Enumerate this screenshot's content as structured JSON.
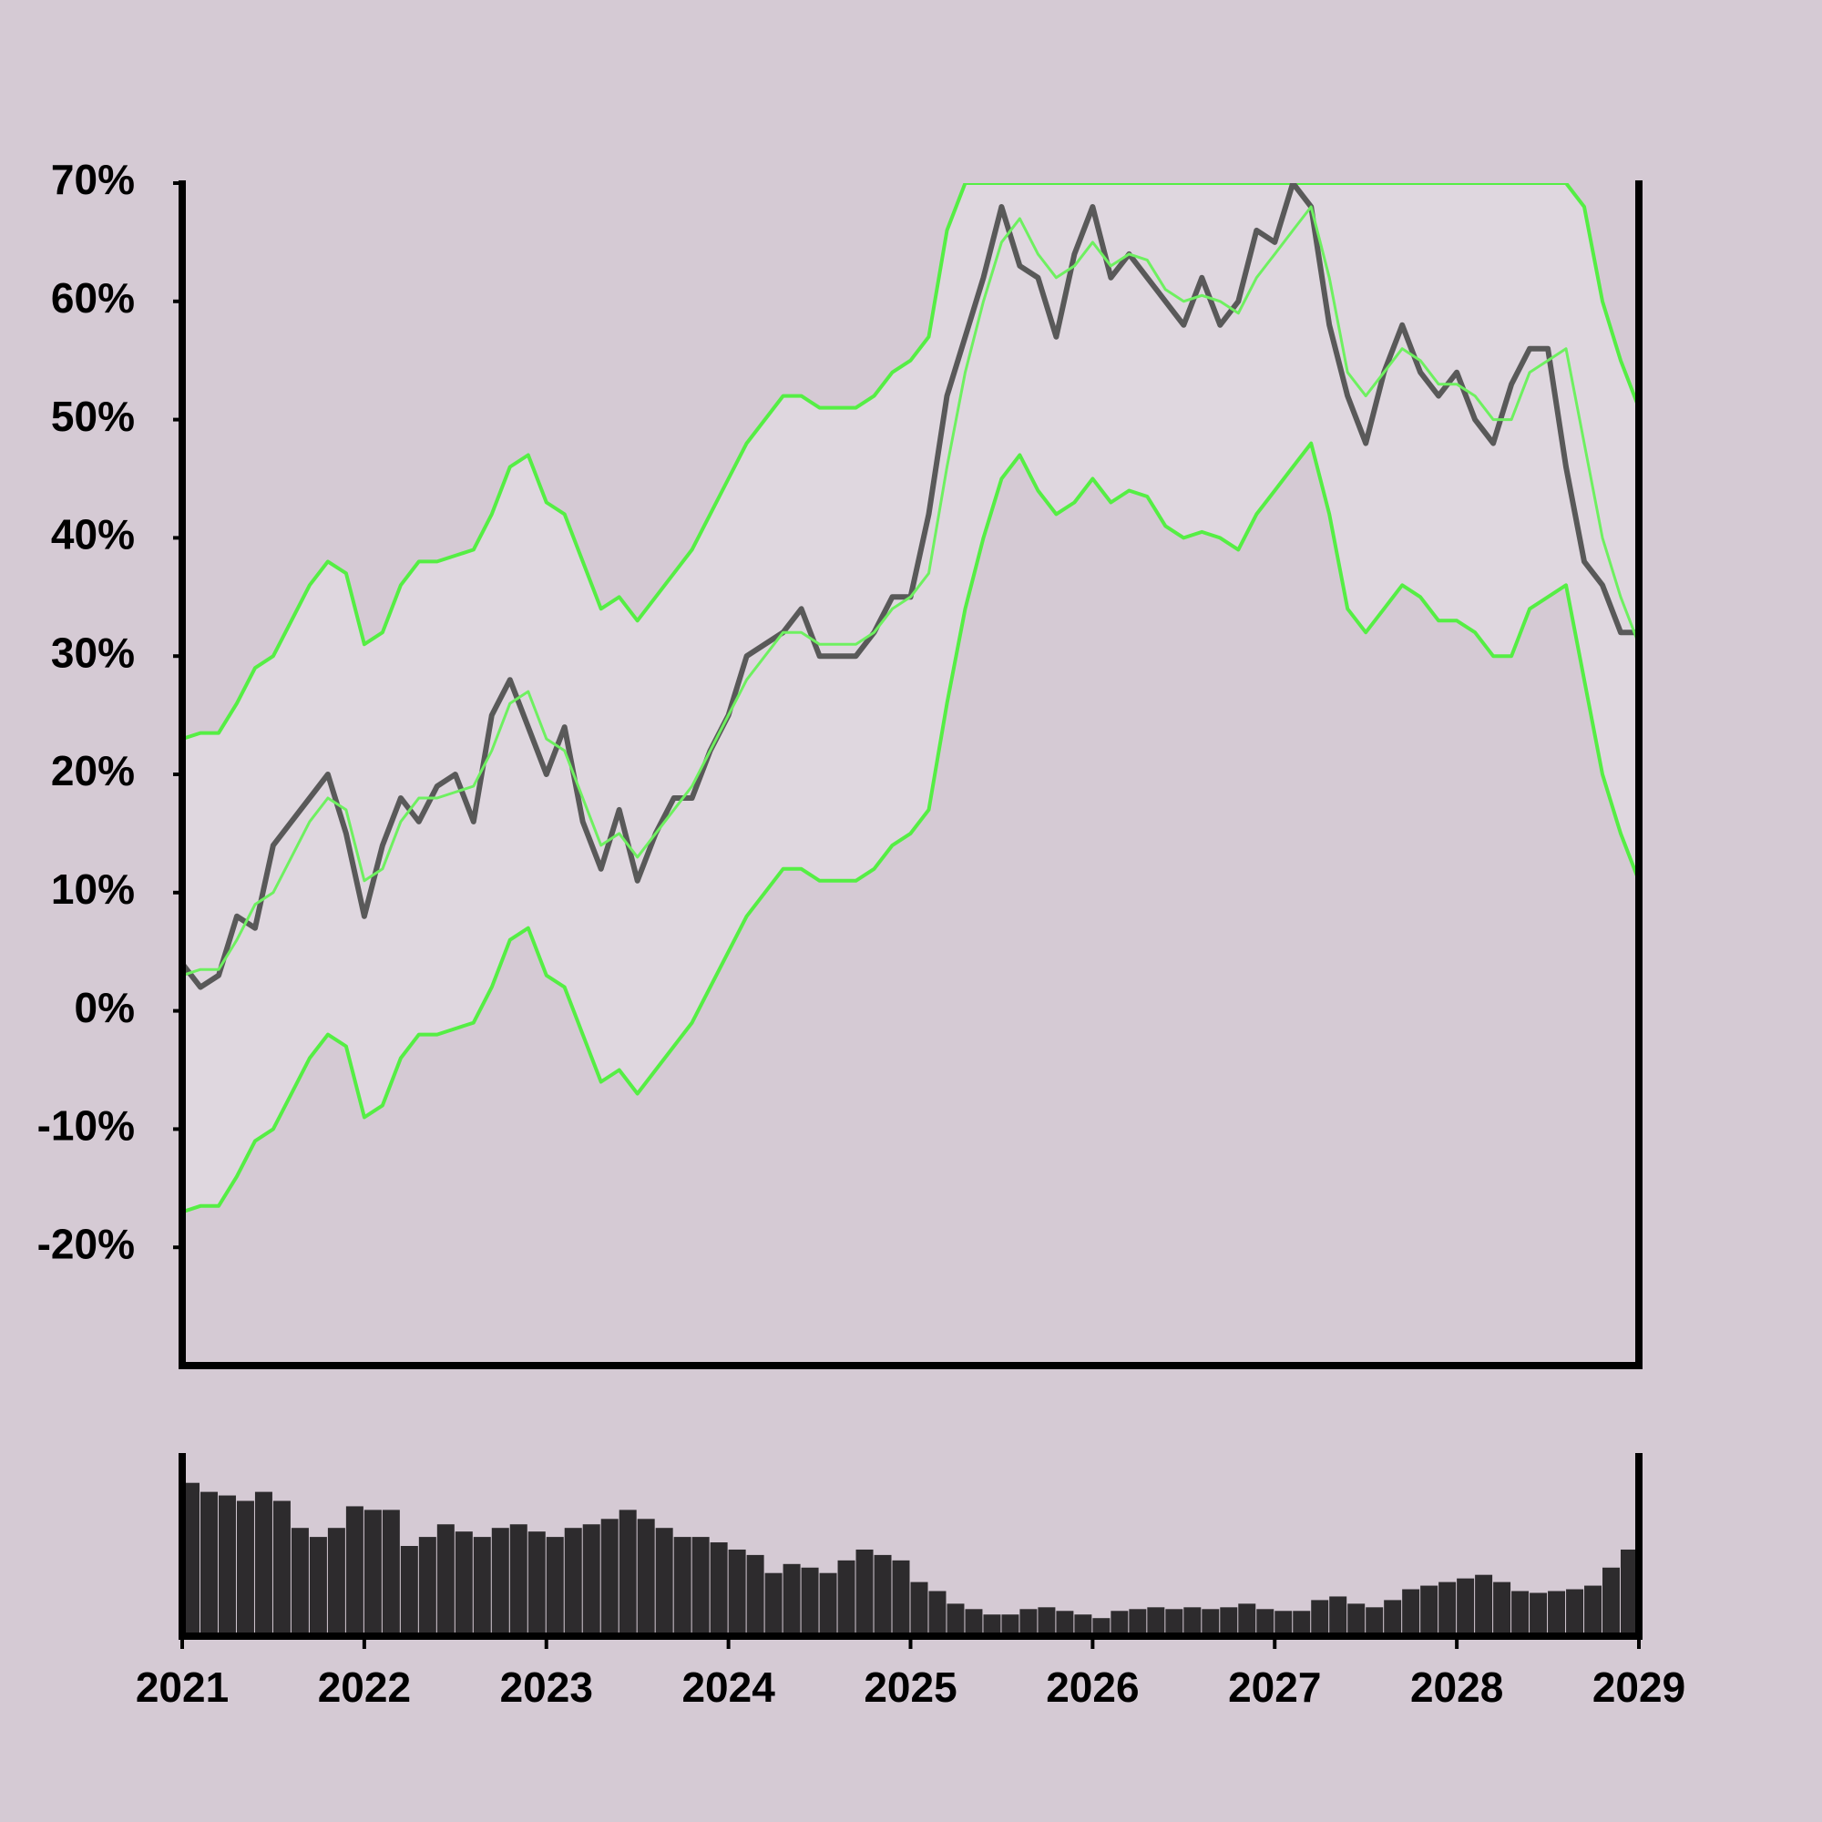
{
  "chart_data": [
    {
      "type": "line",
      "x": [
        2021.0,
        2021.1,
        2021.2,
        2021.3,
        2021.4,
        2021.5,
        2021.6,
        2021.7,
        2021.8,
        2021.9,
        2022.0,
        2022.1,
        2022.2,
        2022.3,
        2022.4,
        2022.5,
        2022.6,
        2022.7,
        2022.8,
        2022.9,
        2023.0,
        2023.1,
        2023.2,
        2023.3,
        2023.4,
        2023.5,
        2023.6,
        2023.7,
        2023.8,
        2023.9,
        2024.0,
        2024.1,
        2024.2,
        2024.3,
        2024.4,
        2024.5,
        2024.6,
        2024.7,
        2024.8,
        2024.9,
        2025.0,
        2025.1,
        2025.2,
        2025.3,
        2025.4,
        2025.5,
        2025.6,
        2025.7,
        2025.8,
        2025.9,
        2026.0,
        2026.1,
        2026.2,
        2026.3,
        2026.4,
        2026.5,
        2026.6,
        2026.7,
        2026.8,
        2026.9,
        2027.0,
        2027.1,
        2027.2,
        2027.3,
        2027.4,
        2027.5,
        2027.6,
        2027.7,
        2027.8,
        2027.9,
        2028.0,
        2028.1,
        2028.2,
        2028.3,
        2028.4,
        2028.5,
        2028.6,
        2028.7,
        2028.8,
        2028.9,
        2029.0
      ],
      "series": [
        {
          "color": "#595959",
          "values": [
            4,
            2,
            3,
            8,
            7,
            14,
            16,
            18,
            20,
            15,
            8,
            14,
            18,
            16,
            19,
            20,
            16,
            25,
            28,
            24,
            20,
            24,
            16,
            12,
            17,
            11,
            15,
            18,
            18,
            22,
            25,
            30,
            31,
            32,
            34,
            30,
            30,
            30,
            32,
            35,
            35,
            42,
            52,
            57,
            62,
            68,
            63,
            62,
            57,
            64,
            68,
            62,
            64,
            62,
            60,
            58,
            62,
            58,
            60,
            66,
            65,
            70,
            68,
            58,
            52,
            48,
            54,
            58,
            54,
            52,
            54,
            50,
            48,
            53,
            56,
            56,
            46,
            38,
            36,
            32,
            32
          ]
        },
        {
          "color": "#55ee44",
          "values": [
            23,
            23.5,
            23.5,
            26,
            29,
            30,
            33,
            36,
            38,
            37,
            31,
            32,
            36,
            38,
            38,
            38.5,
            39,
            42,
            46,
            47,
            43,
            42,
            38,
            34,
            35,
            33,
            35,
            37,
            39,
            42,
            45,
            48,
            50,
            52,
            52,
            51,
            51,
            51,
            52,
            54,
            55,
            57,
            66,
            70,
            70,
            70,
            70,
            70,
            70,
            70,
            70,
            70,
            70,
            70,
            70,
            70,
            70,
            70,
            70,
            70,
            70,
            70,
            70,
            70,
            70,
            70,
            70,
            70,
            70,
            70,
            70,
            70,
            70,
            70,
            70,
            70,
            70,
            68,
            60,
            55,
            51
          ]
        },
        {
          "color": "#6ef060",
          "values": [
            3,
            3.5,
            3.5,
            6,
            9,
            10,
            13,
            16,
            18,
            17,
            11,
            12,
            16,
            18,
            18,
            18.5,
            19,
            22,
            26,
            27,
            23,
            22,
            18,
            14,
            15,
            13,
            15,
            17,
            19,
            22,
            25,
            28,
            30,
            32,
            32,
            31,
            31,
            31,
            32,
            34,
            35,
            37,
            46,
            54,
            60,
            65,
            67,
            64,
            62,
            63,
            65,
            63,
            64,
            63.5,
            61,
            60,
            60.5,
            60,
            59,
            62,
            64,
            66,
            68,
            62,
            54,
            52,
            54,
            56,
            55,
            53,
            53,
            52,
            50,
            50,
            54,
            55,
            56,
            48,
            40,
            35,
            31
          ]
        },
        {
          "color": "#55ee44",
          "values": [
            -17,
            -16.5,
            -16.5,
            -14,
            -11,
            -10,
            -7,
            -4,
            -2,
            -3,
            -9,
            -8,
            -4,
            -2,
            -2,
            -1.5,
            -1,
            2,
            6,
            7,
            3,
            2,
            -2,
            -6,
            -5,
            -7,
            -5,
            -3,
            -1,
            2,
            5,
            8,
            10,
            12,
            12,
            11,
            11,
            11,
            12,
            14,
            15,
            17,
            26,
            34,
            40,
            45,
            47,
            44,
            42,
            43,
            45,
            43,
            44,
            43.5,
            41,
            40,
            40.5,
            40,
            39,
            42,
            44,
            46,
            48,
            42,
            34,
            32,
            34,
            36,
            35,
            33,
            33,
            32,
            30,
            30,
            34,
            35,
            36,
            28,
            20,
            15,
            11
          ]
        }
      ],
      "xlim": [
        2021,
        2029
      ],
      "ylim": [
        -30,
        70
      ],
      "yticks": [
        {
          "value": -20,
          "label": "-20%"
        },
        {
          "value": -10,
          "label": "-10%"
        },
        {
          "value": 0,
          "label": "0%"
        },
        {
          "value": 10,
          "label": "10%"
        },
        {
          "value": 20,
          "label": "20%"
        },
        {
          "value": 30,
          "label": "30%"
        },
        {
          "value": 40,
          "label": "40%"
        },
        {
          "value": 50,
          "label": "50%"
        },
        {
          "value": 60,
          "label": "60%"
        },
        {
          "value": 70,
          "label": "70%"
        }
      ]
    },
    {
      "type": "bar",
      "x": [
        2021.0,
        2021.1,
        2021.2,
        2021.3,
        2021.4,
        2021.5,
        2021.6,
        2021.7,
        2021.8,
        2021.9,
        2022.0,
        2022.1,
        2022.2,
        2022.3,
        2022.4,
        2022.5,
        2022.6,
        2022.7,
        2022.8,
        2022.9,
        2023.0,
        2023.1,
        2023.2,
        2023.3,
        2023.4,
        2023.5,
        2023.6,
        2023.7,
        2023.8,
        2023.9,
        2024.0,
        2024.1,
        2024.2,
        2024.3,
        2024.4,
        2024.5,
        2024.6,
        2024.7,
        2024.8,
        2024.9,
        2025.0,
        2025.1,
        2025.2,
        2025.3,
        2025.4,
        2025.5,
        2025.6,
        2025.7,
        2025.8,
        2025.9,
        2026.0,
        2026.1,
        2026.2,
        2026.3,
        2026.4,
        2026.5,
        2026.6,
        2026.7,
        2026.8,
        2026.9,
        2027.0,
        2027.1,
        2027.2,
        2027.3,
        2027.4,
        2027.5,
        2027.6,
        2027.7,
        2027.8,
        2027.9,
        2028.0,
        2028.1,
        2028.2,
        2028.3,
        2028.4,
        2028.5,
        2028.6,
        2028.7,
        2028.8,
        2028.9
      ],
      "values": [
        85,
        80,
        78,
        75,
        80,
        75,
        60,
        55,
        60,
        72,
        70,
        70,
        50,
        55,
        62,
        58,
        55,
        60,
        62,
        58,
        55,
        60,
        62,
        65,
        70,
        65,
        60,
        55,
        55,
        52,
        48,
        45,
        35,
        40,
        38,
        35,
        42,
        48,
        45,
        42,
        30,
        25,
        18,
        15,
        12,
        12,
        15,
        16,
        14,
        12,
        10,
        14,
        15,
        16,
        15,
        16,
        15,
        16,
        18,
        15,
        14,
        14,
        20,
        22,
        18,
        16,
        20,
        26,
        28,
        30,
        32,
        34,
        30,
        25,
        24,
        25,
        26,
        28,
        38,
        48
      ],
      "color": "#2d2b2d",
      "xlim": [
        2021,
        2029
      ],
      "ylim": [
        0,
        100
      ],
      "xticks": [
        2021,
        2022,
        2023,
        2024,
        2025,
        2026,
        2027,
        2028,
        2029
      ]
    }
  ]
}
